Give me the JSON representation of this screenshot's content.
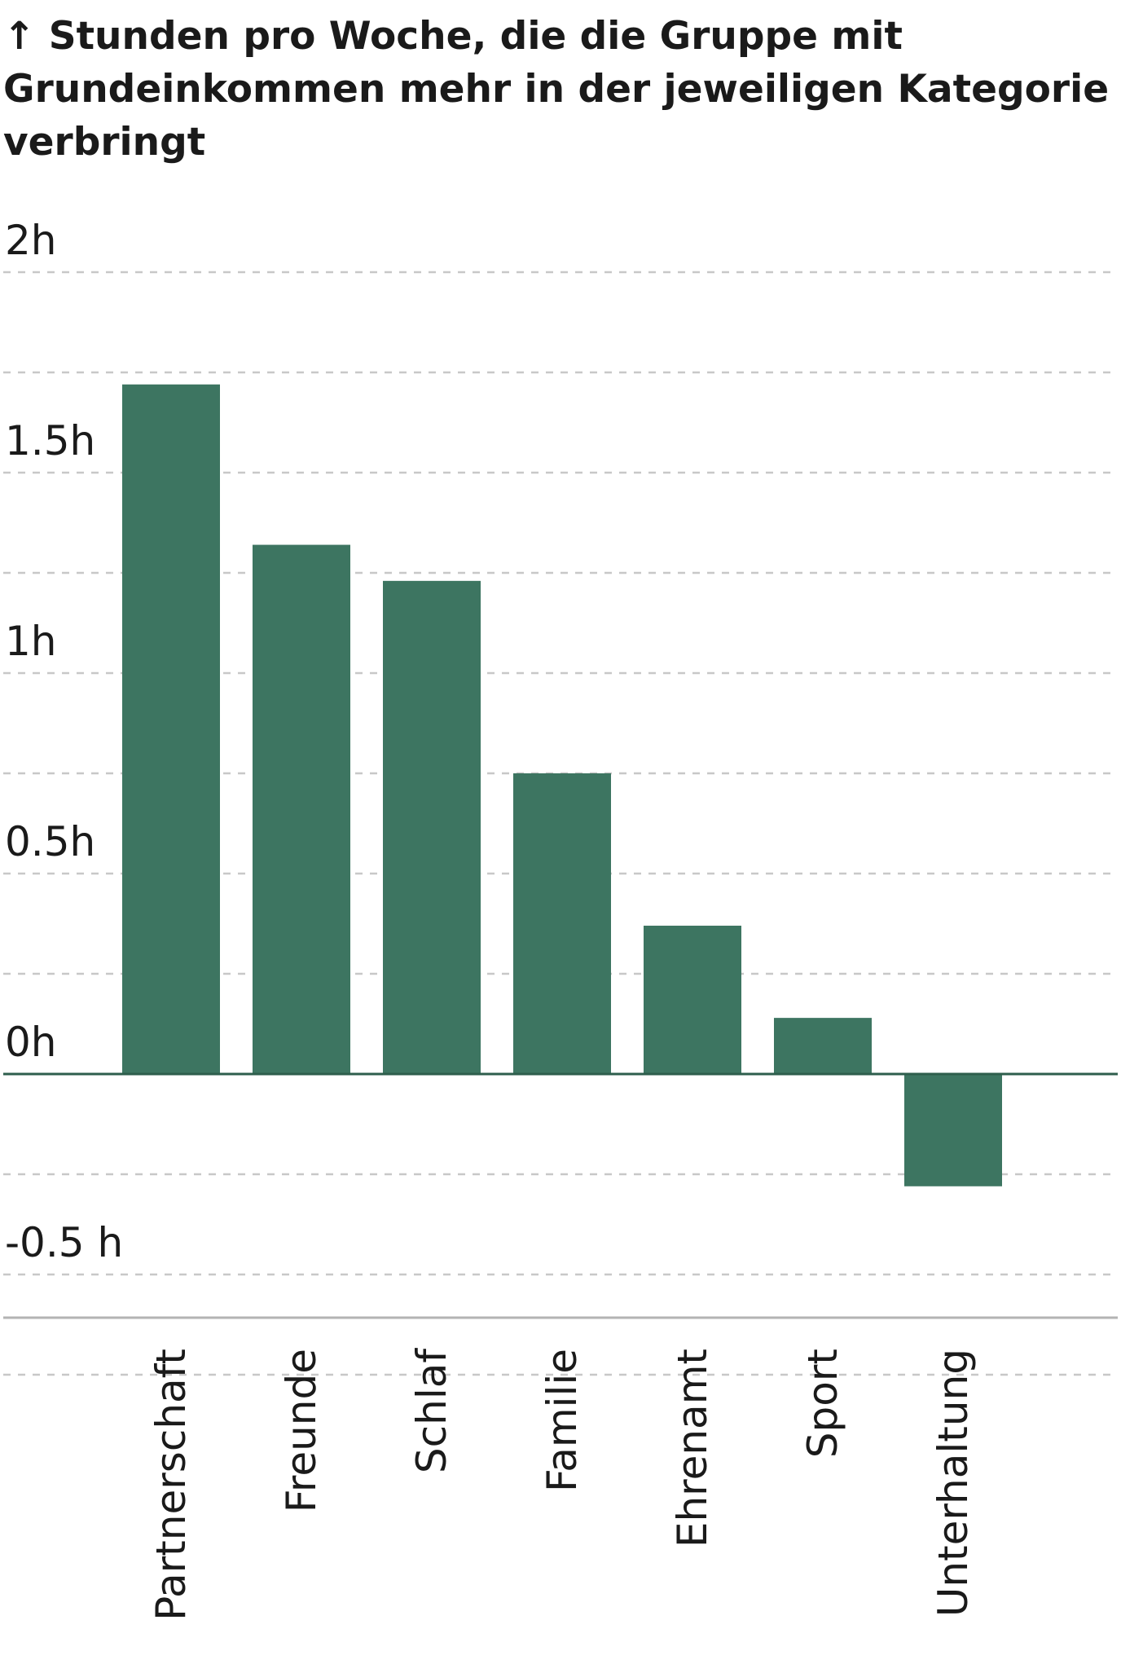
{
  "chart_data": {
    "type": "bar",
    "title": "↑ Stunden pro Woche, die die Gruppe mit Grundeinkommen mehr in der jeweiligen Kategorie verbringt",
    "categories": [
      "Partnerschaft",
      "Freunde",
      "Schlaf",
      "Familie",
      "Ehrenamt",
      "Sport",
      "Unterhaltung"
    ],
    "values": [
      1.72,
      1.32,
      1.23,
      0.75,
      0.37,
      0.14,
      -0.28
    ],
    "ylim": [
      -0.75,
      2
    ],
    "ticks": [
      {
        "value": 2,
        "label": "2h"
      },
      {
        "value": 1.5,
        "label": "1.5h"
      },
      {
        "value": 1,
        "label": "1h"
      },
      {
        "value": 0.5,
        "label": "0.5h"
      },
      {
        "value": 0,
        "label": "0h"
      },
      {
        "value": -0.5,
        "label": "-0.5 h"
      }
    ],
    "grid": true,
    "bar_color": "#3d7561",
    "zero_line_color": "#2e5e4c",
    "grid_color": "#c8c8c8",
    "baseline_color": "#b3b3b3"
  }
}
